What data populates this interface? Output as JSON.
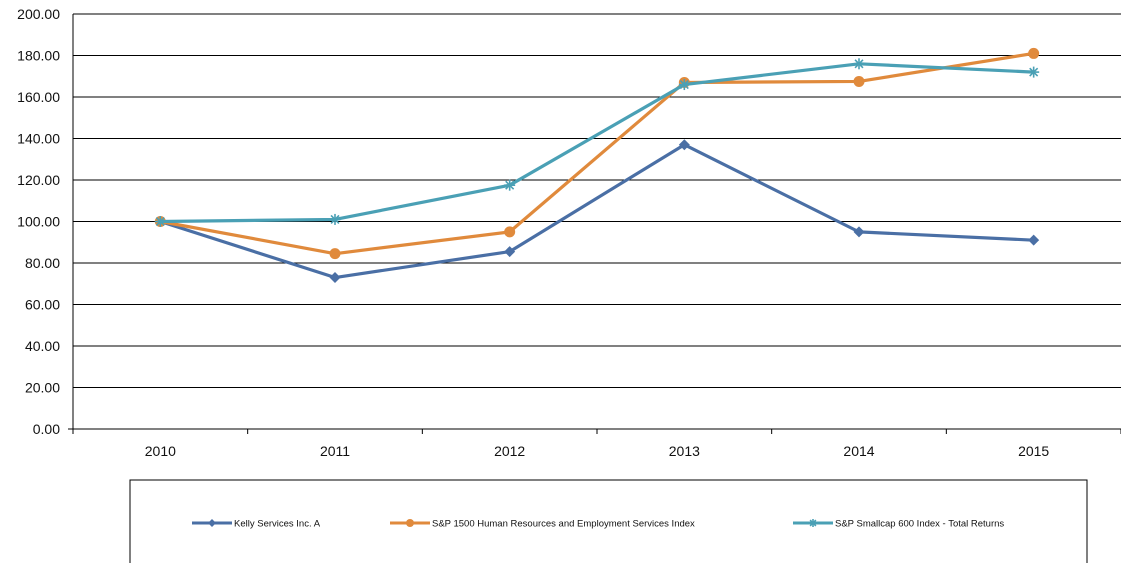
{
  "chart_data": {
    "type": "line",
    "categories": [
      "2010",
      "2011",
      "2012",
      "2013",
      "2014",
      "2015"
    ],
    "ylim": [
      0,
      200
    ],
    "yticks": [
      "0.00",
      "20.00",
      "40.00",
      "60.00",
      "80.00",
      "100.00",
      "120.00",
      "140.00",
      "160.00",
      "180.00",
      "200.00"
    ],
    "grid": true,
    "legend_position": "bottom",
    "series": [
      {
        "name": "Kelly Services Inc. A",
        "values": [
          100,
          73,
          85.5,
          137,
          95,
          91
        ],
        "color": "#4a6fa5",
        "marker": "diamond"
      },
      {
        "name": "S&P 1500  Human Resources and Employment Services Index",
        "values": [
          100,
          84.5,
          95,
          167,
          167.5,
          181
        ],
        "color": "#e08a3c",
        "marker": "circle"
      },
      {
        "name": "S&P Smallcap 600 Index - Total Returns",
        "values": [
          100,
          101,
          117.5,
          166,
          176,
          172
        ],
        "color": "#4aa0b5",
        "marker": "asterisk"
      }
    ]
  }
}
